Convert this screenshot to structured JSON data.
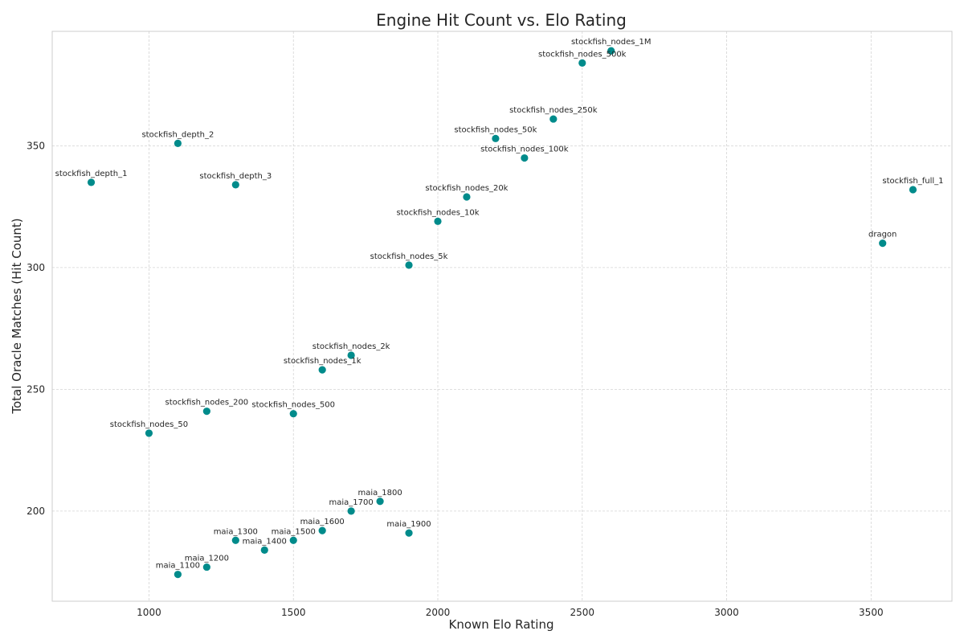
{
  "chart_data": {
    "type": "scatter",
    "title": "Engine Hit Count vs. Elo Rating",
    "xlabel": "Known Elo Rating",
    "ylabel": "Total Oracle Matches (Hit Count)",
    "xlim": [
      665,
      3780
    ],
    "ylim": [
      163,
      397
    ],
    "xticks": [
      1000,
      1500,
      2000,
      2500,
      3000,
      3500
    ],
    "yticks": [
      200,
      250,
      300,
      350
    ],
    "grid": true,
    "marker_color": "#008b8b",
    "points": [
      {
        "label": "stockfish_nodes_1M",
        "x": 2600,
        "y": 389
      },
      {
        "label": "stockfish_nodes_500k",
        "x": 2500,
        "y": 384
      },
      {
        "label": "stockfish_nodes_250k",
        "x": 2400,
        "y": 361
      },
      {
        "label": "stockfish_nodes_50k",
        "x": 2200,
        "y": 353
      },
      {
        "label": "stockfish_nodes_100k",
        "x": 2300,
        "y": 345
      },
      {
        "label": "stockfish_depth_2",
        "x": 1100,
        "y": 351
      },
      {
        "label": "stockfish_depth_1",
        "x": 800,
        "y": 335
      },
      {
        "label": "stockfish_depth_3",
        "x": 1300,
        "y": 334
      },
      {
        "label": "stockfish_full_1",
        "x": 3645,
        "y": 332
      },
      {
        "label": "stockfish_nodes_20k",
        "x": 2100,
        "y": 329
      },
      {
        "label": "stockfish_nodes_10k",
        "x": 2000,
        "y": 319
      },
      {
        "label": "dragon",
        "x": 3540,
        "y": 310
      },
      {
        "label": "stockfish_nodes_5k",
        "x": 1900,
        "y": 301
      },
      {
        "label": "stockfish_nodes_2k",
        "x": 1700,
        "y": 264
      },
      {
        "label": "stockfish_nodes_1k",
        "x": 1600,
        "y": 258
      },
      {
        "label": "stockfish_nodes_200",
        "x": 1200,
        "y": 241
      },
      {
        "label": "stockfish_nodes_500",
        "x": 1500,
        "y": 240
      },
      {
        "label": "stockfish_nodes_50",
        "x": 1000,
        "y": 232
      },
      {
        "label": "maia_1800",
        "x": 1800,
        "y": 204
      },
      {
        "label": "maia_1700",
        "x": 1700,
        "y": 200
      },
      {
        "label": "maia_1600",
        "x": 1600,
        "y": 192
      },
      {
        "label": "maia_1900",
        "x": 1900,
        "y": 191
      },
      {
        "label": "maia_1300",
        "x": 1300,
        "y": 188
      },
      {
        "label": "maia_1500",
        "x": 1500,
        "y": 188
      },
      {
        "label": "maia_1400",
        "x": 1400,
        "y": 184
      },
      {
        "label": "maia_1200",
        "x": 1200,
        "y": 177
      },
      {
        "label": "maia_1100",
        "x": 1100,
        "y": 174
      }
    ]
  }
}
